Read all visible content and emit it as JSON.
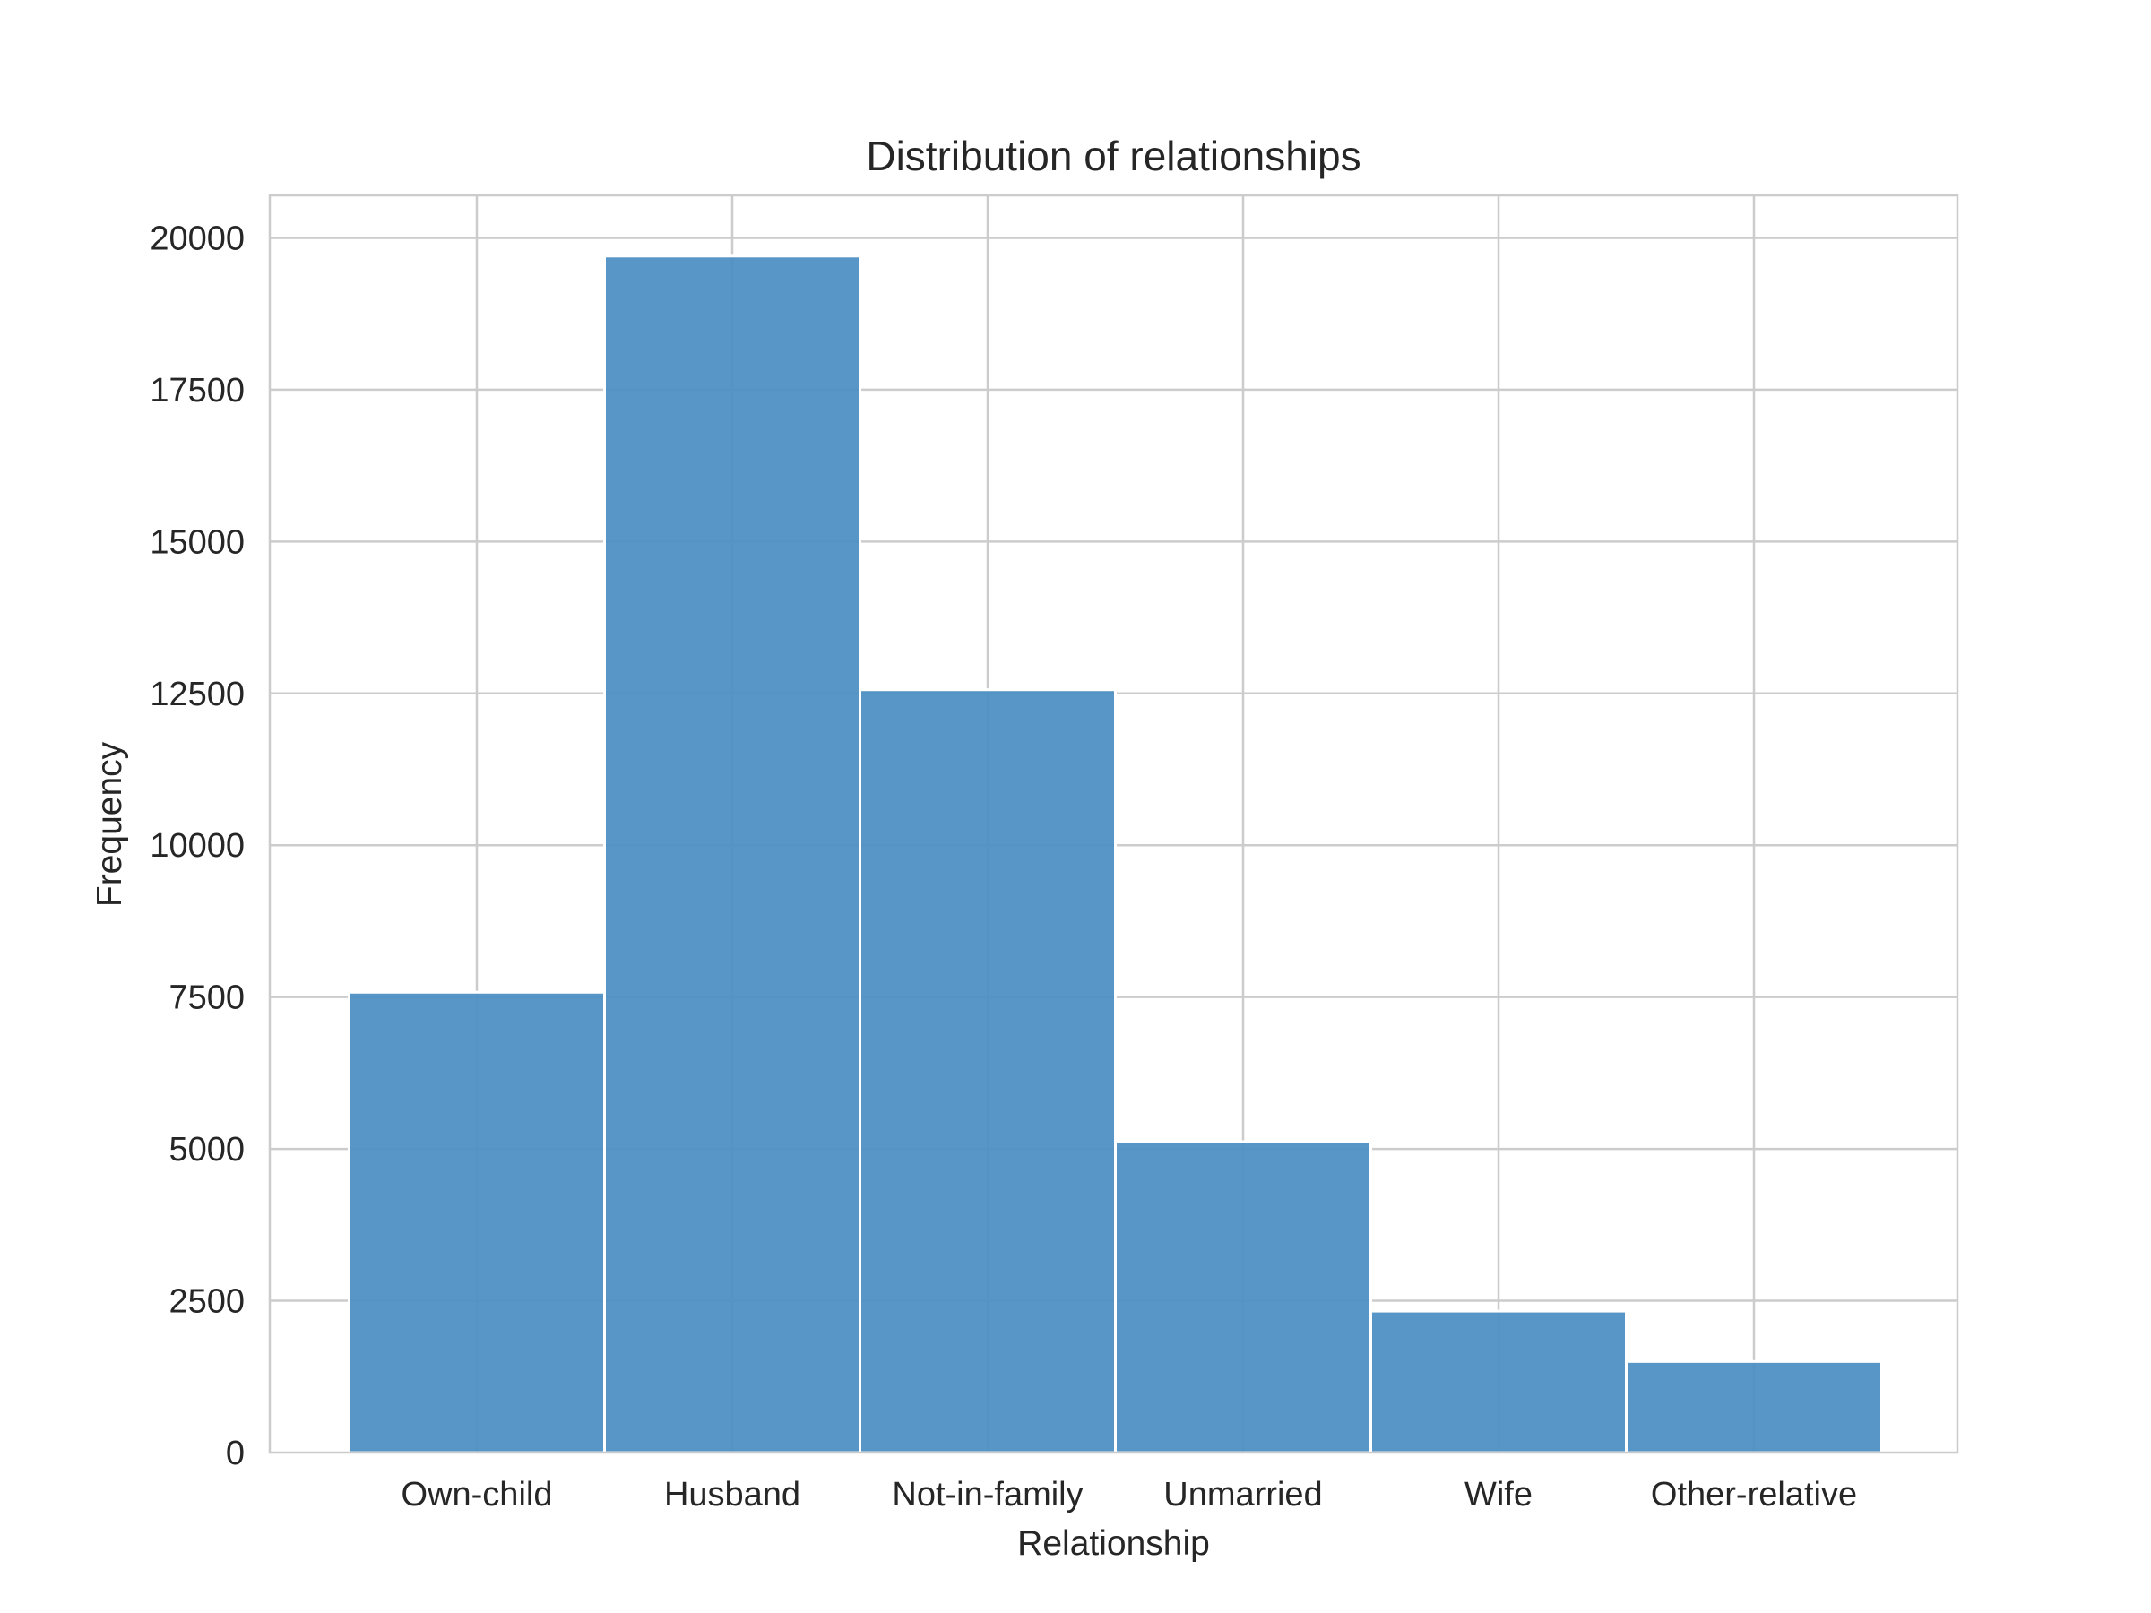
{
  "chart_data": {
    "type": "bar",
    "title": "Distribution of relationships",
    "xlabel": "Relationship",
    "ylabel": "Frequency",
    "categories": [
      "Own-child",
      "Husband",
      "Not-in-family",
      "Unmarried",
      "Wife",
      "Other-relative"
    ],
    "values": [
      7580,
      19700,
      12560,
      5120,
      2330,
      1500
    ],
    "ylim": [
      0,
      20700
    ],
    "yticks": [
      0,
      2500,
      5000,
      7500,
      10000,
      12500,
      15000,
      17500,
      20000
    ],
    "grid": true,
    "legend": "none",
    "bar_color": "#4c8fc2"
  }
}
